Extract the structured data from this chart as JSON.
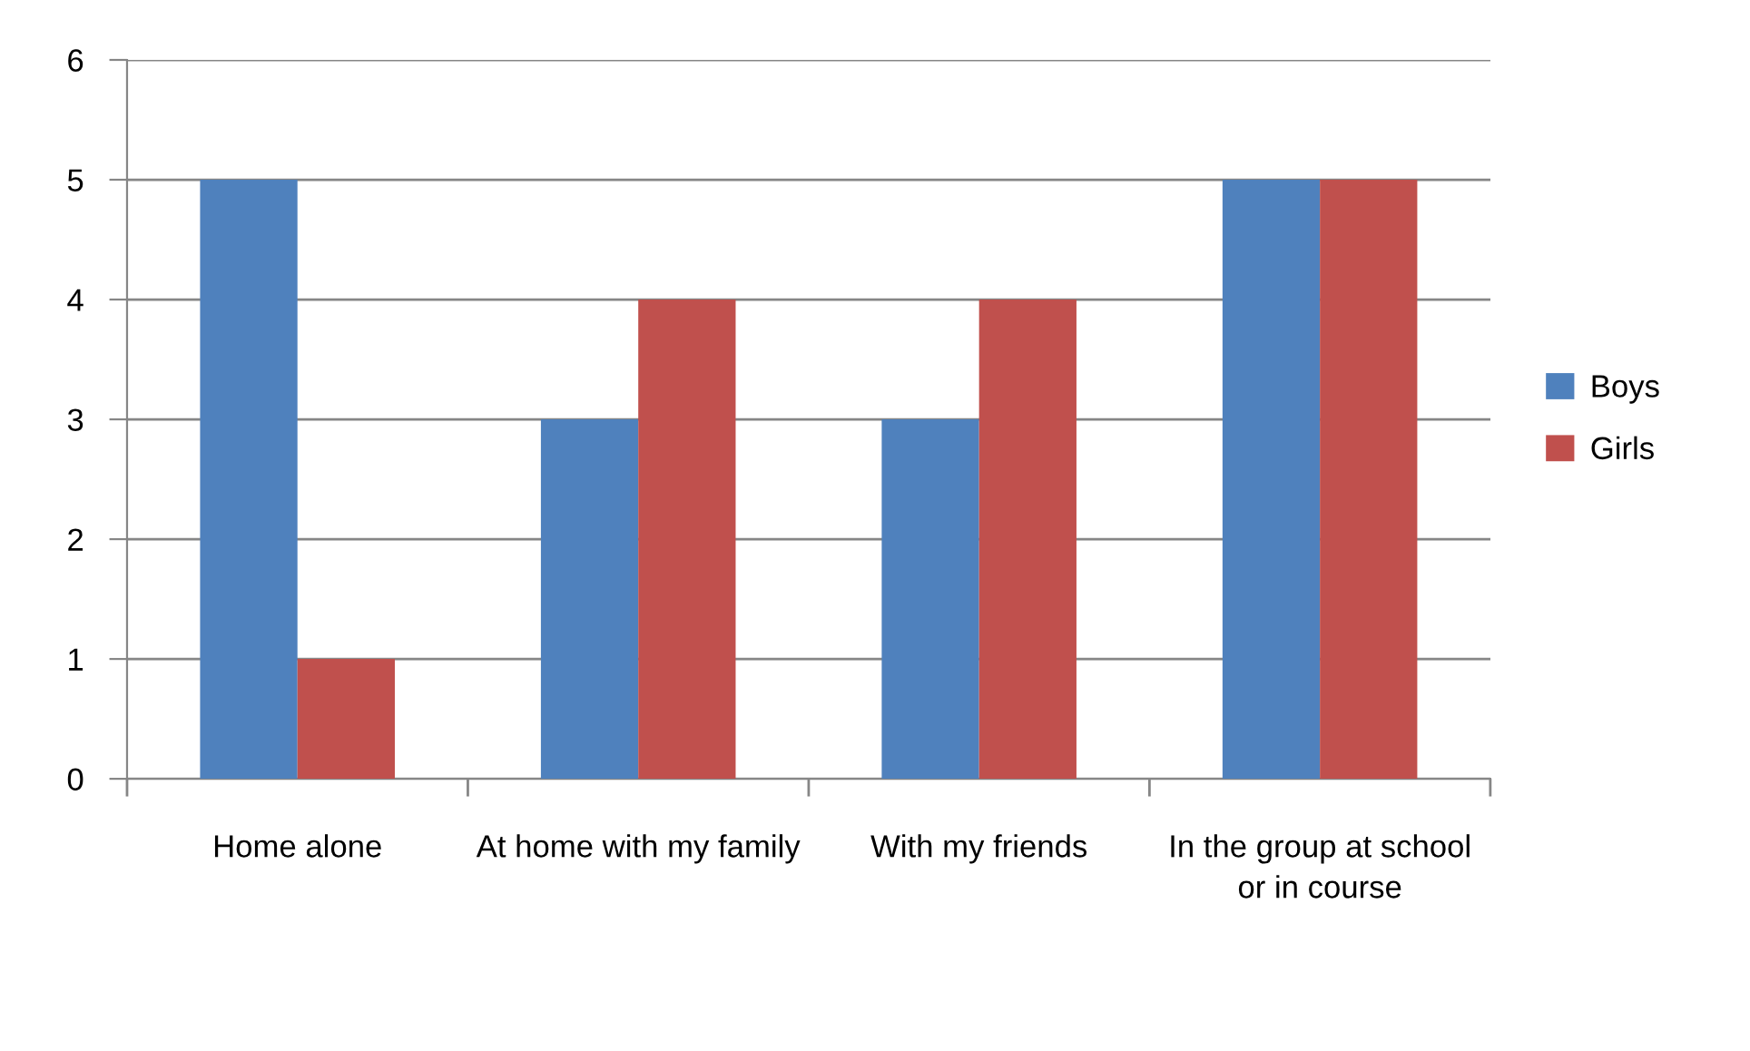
{
  "chart_data": {
    "type": "bar",
    "categories": [
      "Home alone",
      "At home with my family",
      "With my friends",
      "In the group at school or in course"
    ],
    "series": [
      {
        "name": "Boys",
        "color": "#4f81bd",
        "values": [
          5,
          3,
          3,
          5
        ]
      },
      {
        "name": "Girls",
        "color": "#c0504d",
        "values": [
          1,
          4,
          4,
          5
        ]
      }
    ],
    "ylim": [
      0,
      6
    ],
    "yticks": [
      0,
      1,
      2,
      3,
      4,
      5,
      6
    ],
    "grid": "y",
    "legend": "right"
  }
}
